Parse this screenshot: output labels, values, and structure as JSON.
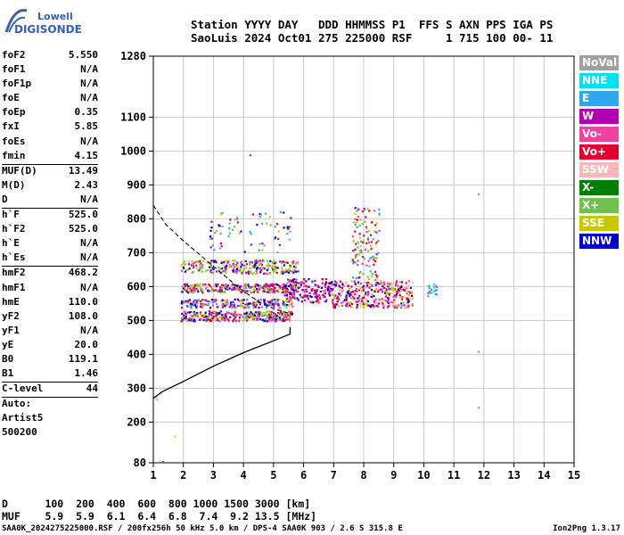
{
  "logo": {
    "line1": "Lowell",
    "line2": "DIGISONDE"
  },
  "header": {
    "labels": "Station YYYY DAY   DDD HHMMSS P1  FFS S AXN PPS IGA PS",
    "values": "SaoLuis 2024 Oct01 275 225000 RSF     1 715 100 00- 11"
  },
  "params": {
    "group1": [
      {
        "label": "foF2",
        "value": "5.550"
      },
      {
        "label": "foF1",
        "value": "N/A"
      },
      {
        "label": "foF1p",
        "value": "N/A"
      },
      {
        "label": "foE",
        "value": "N/A"
      },
      {
        "label": "foEp",
        "value": "0.35"
      },
      {
        "label": "fxI",
        "value": "5.85"
      },
      {
        "label": "foEs",
        "value": "N/A"
      },
      {
        "label": "fmin",
        "value": "4.15"
      }
    ],
    "group2": [
      {
        "label": "MUF(D)",
        "value": "13.49"
      },
      {
        "label": "M(D)",
        "value": "2.43"
      },
      {
        "label": "D",
        "value": "N/A"
      }
    ],
    "group3": [
      {
        "label": "h`F",
        "value": "525.0"
      },
      {
        "label": "h`F2",
        "value": "525.0"
      },
      {
        "label": "h`E",
        "value": "N/A"
      },
      {
        "label": "h`Es",
        "value": "N/A"
      }
    ],
    "group4": [
      {
        "label": "hmF2",
        "value": "468.2"
      },
      {
        "label": "hmF1",
        "value": "N/A"
      },
      {
        "label": "hmE",
        "value": "110.0"
      },
      {
        "label": "yF2",
        "value": "108.0"
      },
      {
        "label": "yF1",
        "value": "N/A"
      },
      {
        "label": "yE",
        "value": "20.0"
      },
      {
        "label": "B0",
        "value": "119.1"
      },
      {
        "label": "B1",
        "value": "1.46"
      }
    ],
    "clevel": {
      "label": "C-level",
      "value": "44"
    },
    "auto": [
      "Auto:",
      "Artist5",
      "500200"
    ]
  },
  "legend": [
    {
      "label": "NoVal",
      "color": "#a0a0a0"
    },
    {
      "label": "NNE",
      "color": "#00e0f0"
    },
    {
      "label": "E",
      "color": "#30a8f0"
    },
    {
      "label": "W",
      "color": "#b000b0"
    },
    {
      "label": "Vo-",
      "color": "#f040a0"
    },
    {
      "label": "Vo+",
      "color": "#e00030"
    },
    {
      "label": "SSW",
      "color": "#f8b8b8"
    },
    {
      "label": "X-",
      "color": "#008000"
    },
    {
      "label": "X+",
      "color": "#70c050"
    },
    {
      "label": "SSE",
      "color": "#c8c800"
    },
    {
      "label": "NNW",
      "color": "#0000c8"
    }
  ],
  "bottom": {
    "d_row": "D      100  200  400  600  800 1000 1500 3000 [km]",
    "muf_row": "MUF    5.9  5.9  6.1  6.4  6.8  7.4  9.2 13.5 [MHz]"
  },
  "footer": "SAA0K_2024275225000.RSF / 200fx256h 50 kHz 5.0 km / DPS-4 SAA0K 903 / 2.6 S 315.8 E",
  "version": "Ion2Png 1.3.17",
  "chart_data": {
    "type": "scatter",
    "xlim": [
      1,
      15
    ],
    "ylim": [
      80,
      1280
    ],
    "x_ticks": [
      1,
      2,
      3,
      4,
      5,
      6,
      7,
      8,
      9,
      10,
      11,
      12,
      13,
      14,
      15
    ],
    "y_ticks": [
      80,
      200,
      300,
      400,
      500,
      600,
      700,
      800,
      900,
      1000,
      1100,
      1280
    ],
    "grid": true,
    "clusters": [
      {
        "fmin": 1.9,
        "fmax": 5.6,
        "hmin": 500,
        "hmax": 530,
        "n": 320,
        "colors": [
          "#b000b0",
          "#0000c8",
          "#c8c800",
          "#f040a0",
          "#e00030",
          "#70c050"
        ]
      },
      {
        "fmin": 1.9,
        "fmax": 5.6,
        "hmin": 540,
        "hmax": 565,
        "n": 220,
        "colors": [
          "#b000b0",
          "#0000c8",
          "#c8c800",
          "#f040a0",
          "#30a8f0"
        ]
      },
      {
        "fmin": 1.9,
        "fmax": 5.8,
        "hmin": 585,
        "hmax": 610,
        "n": 260,
        "colors": [
          "#b000b0",
          "#0000c8",
          "#c8c800",
          "#f040a0",
          "#e00030",
          "#70c050"
        ]
      },
      {
        "fmin": 1.9,
        "fmax": 5.8,
        "hmin": 640,
        "hmax": 680,
        "n": 260,
        "colors": [
          "#c8c800",
          "#b000b0",
          "#0000c8",
          "#f040a0",
          "#70c050"
        ]
      },
      {
        "fmin": 5.3,
        "fmax": 6.9,
        "hmin": 555,
        "hmax": 625,
        "n": 160,
        "colors": [
          "#e00030",
          "#f040a0",
          "#b000b0",
          "#0000c8"
        ]
      },
      {
        "fmin": 6.9,
        "fmax": 9.6,
        "hmin": 540,
        "hmax": 620,
        "n": 360,
        "colors": [
          "#e00030",
          "#f040a0",
          "#b000b0",
          "#0000c8",
          "#f8b8b8",
          "#c8c800"
        ]
      },
      {
        "fmin": 7.6,
        "fmax": 8.5,
        "hmin": 620,
        "hmax": 840,
        "n": 120,
        "colors": [
          "#e00030",
          "#f040a0",
          "#b000b0",
          "#70c050",
          "#30a8f0",
          "#c8c800"
        ]
      },
      {
        "fmin": 2.8,
        "fmax": 5.6,
        "hmin": 700,
        "hmax": 830,
        "n": 70,
        "colors": [
          "#b000b0",
          "#0000c8",
          "#c8c800",
          "#30a8f0",
          "#70c050"
        ]
      },
      {
        "fmin": 10.1,
        "fmax": 10.4,
        "hmin": 575,
        "hmax": 610,
        "n": 18,
        "colors": [
          "#30a8f0",
          "#00e0f0",
          "#f040a0"
        ]
      }
    ],
    "isolated_points": [
      {
        "x": 4.2,
        "y": 990,
        "color": "#b000b0"
      },
      {
        "x": 11.8,
        "y": 875,
        "color": "#30a8f0"
      },
      {
        "x": 11.8,
        "y": 410,
        "color": "#30a8f0"
      },
      {
        "x": 11.8,
        "y": 245,
        "color": "#30a8f0"
      },
      {
        "x": 1.3,
        "y": 85,
        "color": "#e00030"
      },
      {
        "x": 1.7,
        "y": 160,
        "color": "#c8c800"
      },
      {
        "x": 1.1,
        "y": 270,
        "color": "#00e0f0"
      }
    ],
    "trace_solid": [
      [
        1,
        270
      ],
      [
        1.3,
        290
      ],
      [
        2.0,
        320
      ],
      [
        3.0,
        365
      ],
      [
        4.0,
        405
      ],
      [
        5.0,
        440
      ],
      [
        5.55,
        460
      ],
      [
        5.55,
        480
      ]
    ],
    "trace_dashed": [
      [
        1,
        840
      ],
      [
        1.4,
        785
      ],
      [
        2.0,
        735
      ],
      [
        3.0,
        660
      ],
      [
        3.8,
        600
      ],
      [
        4.5,
        555
      ],
      [
        5.0,
        535
      ],
      [
        5.55,
        520
      ]
    ]
  }
}
